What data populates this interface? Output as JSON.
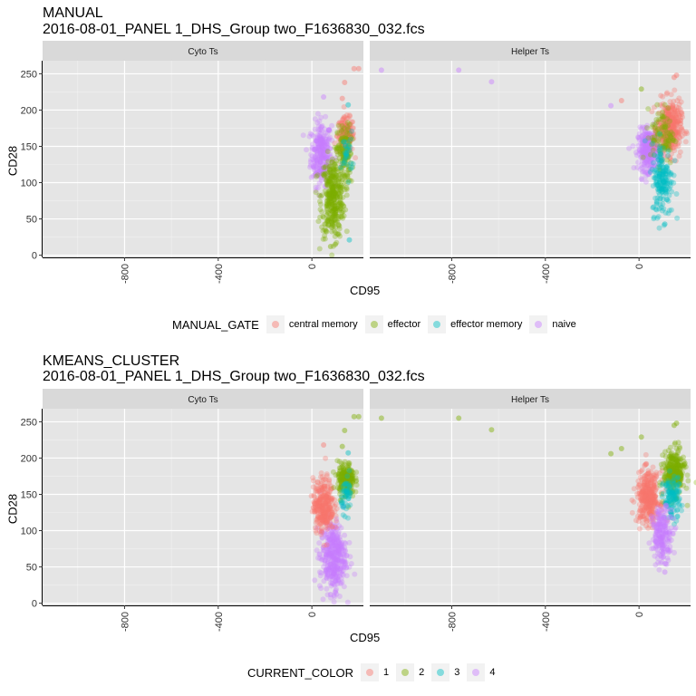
{
  "figures": [
    {
      "title": "MANUAL",
      "subtitle": "2016-08-01_PANEL 1_DHS_Group two_F1636830_032.fcs",
      "xlabel": "CD95",
      "ylabel": "CD28",
      "legend_title": "MANUAL_GATE",
      "legend_items": [
        "central memory",
        "effector",
        "effector memory",
        "naive"
      ],
      "facets": [
        "Cyto Ts",
        "Helper Ts"
      ]
    },
    {
      "title": "KMEANS_CLUSTER",
      "subtitle": "2016-08-01_PANEL 1_DHS_Group two_F1636830_032.fcs",
      "xlabel": "CD95",
      "ylabel": "CD28",
      "legend_title": "CURRENT_COLOR",
      "legend_items": [
        "1",
        "2",
        "3",
        "4"
      ],
      "facets": [
        "Cyto Ts",
        "Helper Ts"
      ]
    }
  ],
  "colors": {
    "c1": "#F8766D",
    "c2": "#7CAE00",
    "c3": "#00BFC4",
    "c4": "#C77CFF",
    "panel_bg": "#e5e5e5",
    "strip_bg": "#d9d9d9",
    "grid": "#ffffff"
  },
  "chart_data": [
    {
      "type": "scatter",
      "title": "MANUAL",
      "subtitle": "2016-08-01_PANEL 1_DHS_Group two_F1636830_032.fcs",
      "xlabel": "CD95",
      "ylabel": "CD28",
      "xlim": [
        -1150,
        220
      ],
      "ylim": [
        -3,
        268
      ],
      "x_ticks": [
        -800,
        -400,
        0
      ],
      "y_ticks": [
        0,
        50,
        100,
        150,
        200,
        250
      ],
      "grid": true,
      "legend_position": "bottom",
      "facets": [
        {
          "name": "Cyto Ts",
          "clusters": [
            {
              "series": "naive",
              "x": 40,
              "y": 140,
              "sx": 22,
              "sy": 22,
              "n": 260
            },
            {
              "series": "central memory",
              "x": 145,
              "y": 165,
              "sx": 18,
              "sy": 12,
              "n": 160
            },
            {
              "series": "effector",
              "x": 90,
              "y": 80,
              "sx": 25,
              "sy": 28,
              "n": 360
            },
            {
              "series": "effector",
              "x": 140,
              "y": 140,
              "sx": 15,
              "sy": 20,
              "n": 120
            },
            {
              "series": "effector memory",
              "x": 150,
              "y": 140,
              "sx": 12,
              "sy": 15,
              "n": 30
            }
          ],
          "outliers": [
            {
              "series": "central memory",
              "x": 180,
              "y": 257
            },
            {
              "series": "central memory",
              "x": 200,
              "y": 257
            },
            {
              "series": "central memory",
              "x": 140,
              "y": 238
            },
            {
              "series": "central memory",
              "x": 130,
              "y": 216
            },
            {
              "series": "naive",
              "x": 50,
              "y": 218
            },
            {
              "series": "effector memory",
              "x": 155,
              "y": 207
            },
            {
              "series": "effector",
              "x": 80,
              "y": 12
            },
            {
              "series": "effector",
              "x": 100,
              "y": 15
            },
            {
              "series": "effector memory",
              "x": 160,
              "y": 21
            }
          ]
        },
        {
          "name": "Helper Ts",
          "clusters": [
            {
              "series": "naive",
              "x": 40,
              "y": 145,
              "sx": 22,
              "sy": 14,
              "n": 300
            },
            {
              "series": "central memory",
              "x": 130,
              "y": 175,
              "sx": 25,
              "sy": 18,
              "n": 380
            },
            {
              "series": "effector",
              "x": 100,
              "y": 165,
              "sx": 25,
              "sy": 20,
              "n": 100
            },
            {
              "series": "effector memory",
              "x": 100,
              "y": 105,
              "sx": 22,
              "sy": 25,
              "n": 180
            }
          ],
          "outliers": [
            {
              "series": "naive",
              "x": -1100,
              "y": 255
            },
            {
              "series": "naive",
              "x": -770,
              "y": 255
            },
            {
              "series": "naive",
              "x": -630,
              "y": 239
            },
            {
              "series": "naive",
              "x": -120,
              "y": 206
            },
            {
              "series": "central memory",
              "x": 150,
              "y": 245
            },
            {
              "series": "central memory",
              "x": 160,
              "y": 248
            },
            {
              "series": "central memory",
              "x": -75,
              "y": 213
            },
            {
              "series": "effector",
              "x": 10,
              "y": 229
            },
            {
              "series": "effector memory",
              "x": 110,
              "y": 43
            }
          ]
        }
      ]
    },
    {
      "type": "scatter",
      "title": "KMEANS_CLUSTER",
      "subtitle": "2016-08-01_PANEL 1_DHS_Group two_F1636830_032.fcs",
      "xlabel": "CD95",
      "ylabel": "CD28",
      "xlim": [
        -1150,
        220
      ],
      "ylim": [
        -3,
        268
      ],
      "x_ticks": [
        -800,
        -400,
        0
      ],
      "y_ticks": [
        0,
        50,
        100,
        150,
        200,
        250
      ],
      "grid": true,
      "legend_position": "bottom",
      "facets": [
        {
          "name": "Cyto Ts",
          "clusters": [
            {
              "series": "4",
              "x": 90,
              "y": 65,
              "sx": 28,
              "sy": 25,
              "n": 380
            },
            {
              "series": "1",
              "x": 50,
              "y": 135,
              "sx": 22,
              "sy": 18,
              "n": 300
            },
            {
              "series": "2",
              "x": 145,
              "y": 170,
              "sx": 18,
              "sy": 12,
              "n": 200
            },
            {
              "series": "3",
              "x": 150,
              "y": 150,
              "sx": 12,
              "sy": 12,
              "n": 50
            }
          ],
          "outliers": [
            {
              "series": "2",
              "x": 180,
              "y": 257
            },
            {
              "series": "2",
              "x": 200,
              "y": 257
            },
            {
              "series": "2",
              "x": 140,
              "y": 238
            },
            {
              "series": "2",
              "x": 130,
              "y": 216
            },
            {
              "series": "1",
              "x": 50,
              "y": 218
            },
            {
              "series": "3",
              "x": 155,
              "y": 207
            },
            {
              "series": "4",
              "x": 80,
              "y": 12
            },
            {
              "series": "4",
              "x": 100,
              "y": 15
            }
          ]
        },
        {
          "name": "Helper Ts",
          "clusters": [
            {
              "series": "1",
              "x": 40,
              "y": 145,
              "sx": 25,
              "sy": 18,
              "n": 320
            },
            {
              "series": "2",
              "x": 150,
              "y": 180,
              "sx": 22,
              "sy": 15,
              "n": 300
            },
            {
              "series": "3",
              "x": 140,
              "y": 145,
              "sx": 18,
              "sy": 15,
              "n": 120
            },
            {
              "series": "4",
              "x": 100,
              "y": 95,
              "sx": 22,
              "sy": 18,
              "n": 200
            }
          ],
          "outliers": [
            {
              "series": "2",
              "x": -1100,
              "y": 255
            },
            {
              "series": "2",
              "x": -770,
              "y": 255
            },
            {
              "series": "2",
              "x": -630,
              "y": 239
            },
            {
              "series": "2",
              "x": -120,
              "y": 206
            },
            {
              "series": "2",
              "x": 150,
              "y": 245
            },
            {
              "series": "2",
              "x": 160,
              "y": 248
            },
            {
              "series": "2",
              "x": -75,
              "y": 213
            },
            {
              "series": "2",
              "x": 10,
              "y": 229
            },
            {
              "series": "4",
              "x": 110,
              "y": 43
            }
          ]
        }
      ]
    }
  ]
}
